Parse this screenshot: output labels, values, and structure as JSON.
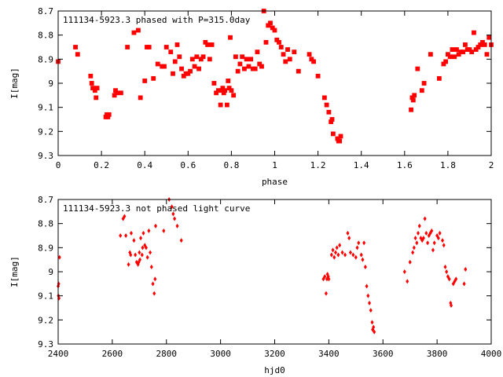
{
  "chart_data": [
    {
      "type": "scatter",
      "title": "111134-5923.3 phased with P=315.0day",
      "xlabel": "phase",
      "ylabel": "I[mag]",
      "xlim": [
        0,
        2
      ],
      "ylim": [
        8.7,
        9.3
      ],
      "y_inverted": true,
      "xticks": [
        "0",
        "0.2",
        "0.4",
        "0.6",
        "0.8",
        "1",
        "1.2",
        "1.4",
        "1.6",
        "1.8",
        "2"
      ],
      "yticks": [
        "8.7",
        "8.8",
        "8.9",
        "9",
        "9.1",
        "9.2",
        "9.3"
      ],
      "marker_color": "#ff0000",
      "series": [
        {
          "points": [
            [
              0.0,
              8.91
            ],
            [
              0.08,
              8.85
            ],
            [
              0.09,
              8.88
            ],
            [
              0.15,
              8.97
            ],
            [
              0.155,
              9.0
            ],
            [
              0.16,
              9.02
            ],
            [
              0.17,
              9.03
            ],
            [
              0.18,
              9.02
            ],
            [
              0.175,
              9.06
            ],
            [
              0.22,
              9.14
            ],
            [
              0.225,
              9.13
            ],
            [
              0.23,
              9.14
            ],
            [
              0.235,
              9.13
            ],
            [
              0.26,
              9.05
            ],
            [
              0.265,
              9.03
            ],
            [
              0.27,
              9.04
            ],
            [
              0.29,
              9.04
            ],
            [
              0.32,
              8.85
            ],
            [
              0.35,
              8.79
            ],
            [
              0.37,
              8.78
            ],
            [
              0.38,
              9.06
            ],
            [
              0.4,
              8.99
            ],
            [
              0.41,
              8.85
            ],
            [
              0.42,
              8.85
            ],
            [
              0.44,
              8.98
            ],
            [
              0.46,
              8.92
            ],
            [
              0.48,
              8.93
            ],
            [
              0.49,
              8.93
            ],
            [
              0.5,
              8.85
            ],
            [
              0.52,
              8.87
            ],
            [
              0.53,
              8.96
            ],
            [
              0.54,
              8.91
            ],
            [
              0.55,
              8.84
            ],
            [
              0.56,
              8.89
            ],
            [
              0.57,
              8.94
            ],
            [
              0.58,
              8.97
            ],
            [
              0.59,
              8.96
            ],
            [
              0.6,
              8.96
            ],
            [
              0.61,
              8.95
            ],
            [
              0.62,
              8.9
            ],
            [
              0.63,
              8.93
            ],
            [
              0.64,
              8.89
            ],
            [
              0.65,
              8.94
            ],
            [
              0.66,
              8.9
            ],
            [
              0.67,
              8.89
            ],
            [
              0.68,
              8.83
            ],
            [
              0.69,
              8.84
            ],
            [
              0.7,
              8.9
            ],
            [
              0.71,
              8.84
            ],
            [
              0.72,
              9.0
            ],
            [
              0.73,
              9.04
            ],
            [
              0.74,
              9.03
            ],
            [
              0.75,
              9.09
            ],
            [
              0.755,
              9.03
            ],
            [
              0.76,
              9.02
            ],
            [
              0.765,
              9.04
            ],
            [
              0.77,
              9.03
            ],
            [
              0.78,
              9.09
            ],
            [
              0.785,
              8.99
            ],
            [
              0.79,
              9.02
            ],
            [
              0.795,
              8.81
            ],
            [
              0.8,
              9.03
            ],
            [
              0.81,
              9.05
            ],
            [
              0.82,
              8.89
            ],
            [
              0.83,
              8.95
            ],
            [
              0.84,
              8.92
            ],
            [
              0.85,
              8.89
            ],
            [
              0.86,
              8.94
            ],
            [
              0.87,
              8.9
            ],
            [
              0.88,
              8.93
            ],
            [
              0.89,
              8.9
            ],
            [
              0.9,
              8.94
            ],
            [
              0.91,
              8.94
            ],
            [
              0.92,
              8.87
            ],
            [
              0.93,
              8.92
            ],
            [
              0.94,
              8.93
            ],
            [
              0.95,
              8.7
            ],
            [
              0.96,
              8.83
            ],
            [
              0.97,
              8.76
            ],
            [
              0.98,
              8.75
            ],
            [
              0.99,
              8.77
            ],
            [
              1.0,
              8.78
            ],
            [
              1.01,
              8.82
            ],
            [
              1.02,
              8.83
            ],
            [
              1.03,
              8.85
            ],
            [
              1.04,
              8.88
            ],
            [
              1.05,
              8.91
            ],
            [
              1.06,
              8.86
            ],
            [
              1.07,
              8.9
            ],
            [
              1.09,
              8.87
            ],
            [
              1.11,
              8.95
            ],
            [
              1.16,
              8.88
            ],
            [
              1.17,
              8.9
            ],
            [
              1.18,
              8.91
            ],
            [
              1.2,
              8.97
            ],
            [
              1.23,
              9.06
            ],
            [
              1.24,
              9.09
            ],
            [
              1.25,
              9.12
            ],
            [
              1.26,
              9.16
            ],
            [
              1.265,
              9.15
            ],
            [
              1.27,
              9.21
            ],
            [
              1.29,
              9.23
            ],
            [
              1.295,
              9.24
            ],
            [
              1.3,
              9.24
            ],
            [
              1.305,
              9.22
            ],
            [
              1.63,
              9.11
            ],
            [
              1.635,
              9.06
            ],
            [
              1.64,
              9.07
            ],
            [
              1.645,
              9.05
            ],
            [
              1.66,
              8.94
            ],
            [
              1.68,
              9.03
            ],
            [
              1.69,
              9.0
            ],
            [
              1.72,
              8.88
            ],
            [
              1.76,
              8.98
            ],
            [
              1.78,
              8.92
            ],
            [
              1.79,
              8.91
            ],
            [
              1.8,
              8.88
            ],
            [
              1.81,
              8.89
            ],
            [
              1.82,
              8.86
            ],
            [
              1.83,
              8.89
            ],
            [
              1.84,
              8.86
            ],
            [
              1.85,
              8.88
            ],
            [
              1.86,
              8.87
            ],
            [
              1.87,
              8.87
            ],
            [
              1.88,
              8.84
            ],
            [
              1.89,
              8.86
            ],
            [
              1.9,
              8.86
            ],
            [
              1.91,
              8.87
            ],
            [
              1.92,
              8.79
            ],
            [
              1.93,
              8.86
            ],
            [
              1.94,
              8.85
            ],
            [
              1.95,
              8.84
            ],
            [
              1.96,
              8.83
            ],
            [
              1.97,
              8.84
            ],
            [
              1.98,
              8.88
            ],
            [
              1.99,
              8.81
            ],
            [
              2.0,
              8.84
            ]
          ]
        }
      ]
    },
    {
      "type": "scatter",
      "title": "111134-5923.3 not phased light curve",
      "xlabel": "hjd0",
      "ylabel": "I[mag]",
      "xlim": [
        2400,
        4000
      ],
      "ylim": [
        8.7,
        9.3
      ],
      "y_inverted": true,
      "xticks": [
        "2400",
        "2600",
        "2800",
        "3000",
        "3200",
        "3400",
        "3600",
        "3800",
        "4000"
      ],
      "yticks": [
        "8.7",
        "8.8",
        "8.9",
        "9",
        "9.1",
        "9.2",
        "9.3"
      ],
      "marker_color": "#ff0000",
      "series": [
        {
          "points": [
            [
              2400,
              9.06
            ],
            [
              2401,
              9.1
            ],
            [
              2402,
              9.05
            ],
            [
              2403,
              9.11
            ],
            [
              2405,
              8.94
            ],
            [
              2630,
              8.85
            ],
            [
              2640,
              8.78
            ],
            [
              2645,
              8.77
            ],
            [
              2650,
              8.85
            ],
            [
              2660,
              8.97
            ],
            [
              2665,
              8.92
            ],
            [
              2668,
              8.93
            ],
            [
              2670,
              8.84
            ],
            [
              2680,
              8.87
            ],
            [
              2685,
              8.93
            ],
            [
              2690,
              8.96
            ],
            [
              2695,
              8.97
            ],
            [
              2698,
              8.96
            ],
            [
              2700,
              8.92
            ],
            [
              2702,
              8.95
            ],
            [
              2705,
              8.86
            ],
            [
              2710,
              8.93
            ],
            [
              2712,
              8.9
            ],
            [
              2715,
              8.84
            ],
            [
              2720,
              8.89
            ],
            [
              2725,
              8.9
            ],
            [
              2730,
              8.94
            ],
            [
              2735,
              8.83
            ],
            [
              2740,
              8.92
            ],
            [
              2745,
              8.98
            ],
            [
              2750,
              9.05
            ],
            [
              2755,
              9.09
            ],
            [
              2758,
              9.03
            ],
            [
              2760,
              8.81
            ],
            [
              2790,
              8.83
            ],
            [
              2810,
              8.7
            ],
            [
              2820,
              8.73
            ],
            [
              2825,
              8.76
            ],
            [
              2830,
              8.78
            ],
            [
              2840,
              8.81
            ],
            [
              2855,
              8.87
            ],
            [
              3380,
              9.03
            ],
            [
              3385,
              9.02
            ],
            [
              3390,
              9.09
            ],
            [
              3393,
              9.03
            ],
            [
              3395,
              9.01
            ],
            [
              3398,
              9.02
            ],
            [
              3400,
              9.03
            ],
            [
              3410,
              8.93
            ],
            [
              3415,
              8.91
            ],
            [
              3420,
              8.94
            ],
            [
              3425,
              8.92
            ],
            [
              3430,
              8.9
            ],
            [
              3435,
              8.93
            ],
            [
              3440,
              8.89
            ],
            [
              3450,
              8.92
            ],
            [
              3460,
              8.93
            ],
            [
              3470,
              8.84
            ],
            [
              3475,
              8.86
            ],
            [
              3480,
              8.92
            ],
            [
              3490,
              8.93
            ],
            [
              3500,
              8.94
            ],
            [
              3505,
              8.9
            ],
            [
              3510,
              8.88
            ],
            [
              3520,
              8.93
            ],
            [
              3525,
              8.95
            ],
            [
              3530,
              8.88
            ],
            [
              3535,
              8.98
            ],
            [
              3540,
              9.06
            ],
            [
              3545,
              9.1
            ],
            [
              3550,
              9.13
            ],
            [
              3555,
              9.16
            ],
            [
              3560,
              9.21
            ],
            [
              3562,
              9.24
            ],
            [
              3565,
              9.23
            ],
            [
              3568,
              9.25
            ],
            [
              3680,
              9.0
            ],
            [
              3690,
              9.04
            ],
            [
              3700,
              8.96
            ],
            [
              3710,
              8.92
            ],
            [
              3715,
              8.9
            ],
            [
              3720,
              8.86
            ],
            [
              3725,
              8.88
            ],
            [
              3730,
              8.84
            ],
            [
              3735,
              8.81
            ],
            [
              3740,
              8.86
            ],
            [
              3745,
              8.87
            ],
            [
              3750,
              8.86
            ],
            [
              3755,
              8.78
            ],
            [
              3760,
              8.84
            ],
            [
              3765,
              8.88
            ],
            [
              3770,
              8.85
            ],
            [
              3775,
              8.84
            ],
            [
              3780,
              8.83
            ],
            [
              3785,
              8.91
            ],
            [
              3790,
              8.88
            ],
            [
              3800,
              8.85
            ],
            [
              3805,
              8.86
            ],
            [
              3810,
              8.84
            ],
            [
              3820,
              8.87
            ],
            [
              3825,
              8.89
            ],
            [
              3830,
              8.98
            ],
            [
              3835,
              9.0
            ],
            [
              3840,
              9.02
            ],
            [
              3845,
              9.03
            ],
            [
              3850,
              9.13
            ],
            [
              3852,
              9.14
            ],
            [
              3860,
              9.05
            ],
            [
              3865,
              9.04
            ],
            [
              3870,
              9.03
            ],
            [
              3900,
              9.05
            ],
            [
              3905,
              8.99
            ]
          ]
        }
      ]
    }
  ]
}
